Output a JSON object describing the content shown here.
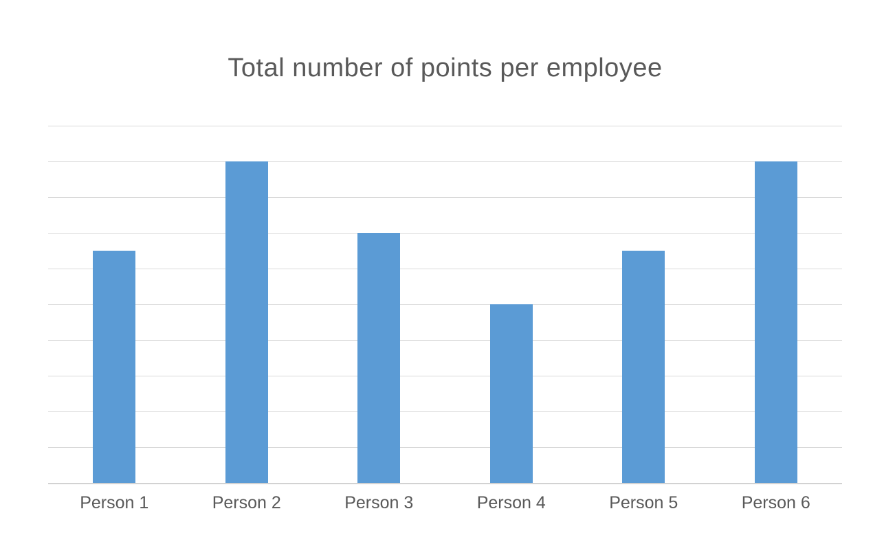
{
  "chart_data": {
    "type": "bar",
    "title": "Total number of points per employee",
    "categories": [
      "Person 1",
      "Person 2",
      "Person 3",
      "Person 4",
      "Person 5",
      "Person 6"
    ],
    "values": [
      6.5,
      9,
      7,
      5,
      6.5,
      9
    ],
    "xlabel": "",
    "ylabel": "",
    "ylim": [
      0,
      10
    ],
    "gridline_interval": 1,
    "y_tick_labels_visible": false,
    "legend_position": "none",
    "grid": "horizontal",
    "colors": {
      "bar": "#5B9BD5",
      "title_text": "#595959",
      "axis_label_text": "#595959",
      "gridline": "#D9D9D9",
      "axis_line": "#D2D2D2",
      "background": "#FFFFFF"
    }
  }
}
